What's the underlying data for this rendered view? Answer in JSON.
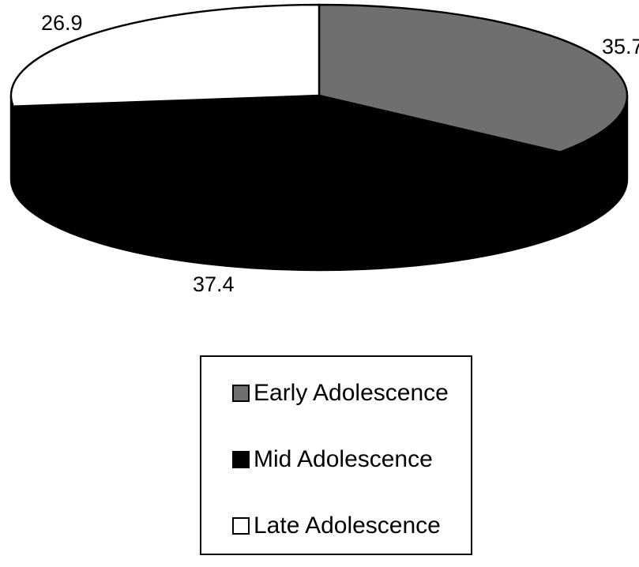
{
  "background": "#ffffff",
  "outline_color": "#000000",
  "chart_data": {
    "type": "pie",
    "style": "3d",
    "direction": "clockwise",
    "start_angle_deg": 0,
    "legend_position": "bottom-center",
    "data_labels_shown": true,
    "series": [
      {
        "label": "Early Adolescence",
        "value": 35.7,
        "color": "#6f6f6f",
        "slug": "early-adolescence"
      },
      {
        "label": "Mid Adolescence",
        "value": 37.4,
        "color": "#000000",
        "slug": "mid-adolescence"
      },
      {
        "label": "Late Adolescence",
        "value": 26.9,
        "color": "#ffffff",
        "slug": "late-adolescence"
      }
    ]
  }
}
